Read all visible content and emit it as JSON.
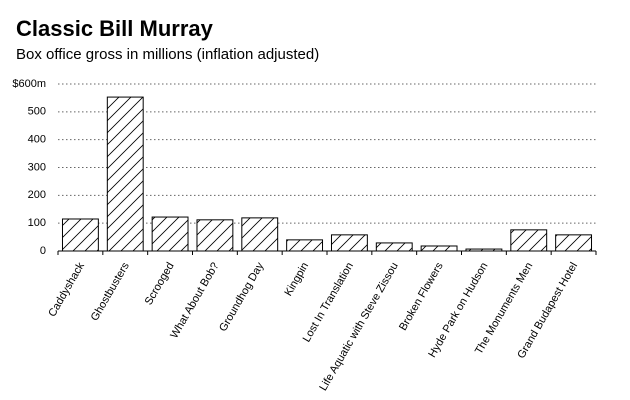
{
  "chart_data": {
    "type": "bar",
    "title": "Classic Bill Murray",
    "subtitle": "Box office gross in millions (inflation adjusted)",
    "categories": [
      "Caddyshack",
      "Ghostbusters",
      "Scrooged",
      "What About Bob?",
      "Groundhog Day",
      "Kingpin",
      "Lost In Translation",
      "Life Aquatic with Steve Zissou",
      "Broken Flowers",
      "Hyde Park on Hudson",
      "The Monuments Men",
      "Grand Budapest Hotel"
    ],
    "values": [
      115,
      553,
      122,
      112,
      119,
      40,
      58,
      29,
      18,
      7,
      76,
      58
    ],
    "color": "#ffffff",
    "ylim": [
      0,
      600
    ],
    "yticks": [
      0,
      100,
      200,
      300,
      400,
      {
        "value": 600,
        "label": "$600m"
      },
      500
    ],
    "grid": true
  }
}
